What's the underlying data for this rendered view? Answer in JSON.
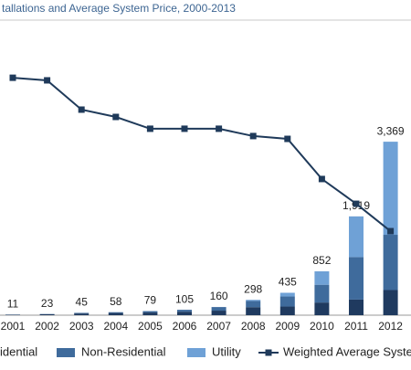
{
  "chart_data": {
    "type": "bar",
    "title": "tallations and Average System Price, 2000-2013",
    "categories": [
      "2001",
      "2002",
      "2003",
      "2004",
      "2005",
      "2006",
      "2007",
      "2008",
      "2009",
      "2010",
      "2011",
      "2012"
    ],
    "series": [
      {
        "name": "idential",
        "color": "#1f3a5f",
        "values": [
          9,
          19,
          33,
          43,
          52,
          68,
          88,
          156,
          168,
          246,
          303,
          488
        ]
      },
      {
        "name": "Non-Residential",
        "color": "#3f6b9c",
        "values": [
          2,
          4,
          12,
          15,
          27,
          37,
          70,
          120,
          195,
          345,
          826,
          1073
        ]
      },
      {
        "name": "Utility",
        "color": "#6fa1d6",
        "values": [
          0,
          0,
          0,
          0,
          0,
          0,
          2,
          22,
          72,
          261,
          790,
          1808
        ]
      },
      {
        "name": "Weighted Average Syste",
        "color": "#1f3a5a",
        "axis": "y2",
        "values": [
          10.06,
          9.95,
          8.71,
          8.4,
          7.9,
          7.9,
          7.9,
          7.59,
          7.47,
          5.77,
          4.72,
          3.56
        ]
      }
    ],
    "totals": [
      11,
      23,
      45,
      58,
      79,
      105,
      160,
      298,
      435,
      852,
      1919,
      3369
    ],
    "total_labels": [
      "11",
      "23",
      "45",
      "58",
      "79",
      "105",
      "160",
      "298",
      "435",
      "852",
      "1,919",
      "3,369"
    ],
    "ylim": [
      0,
      5500
    ],
    "y2lim": [
      0,
      12
    ]
  }
}
